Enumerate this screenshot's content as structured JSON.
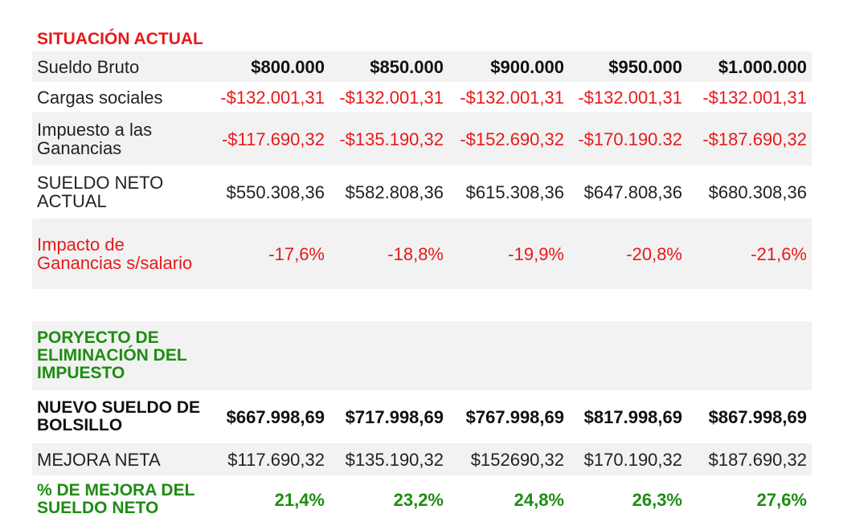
{
  "current": {
    "heading": "SITUACIÓN ACTUAL",
    "rows": {
      "gross": {
        "label": "Sueldo Bruto",
        "values": [
          "$800.000",
          "$850.000",
          "$900.000",
          "$950.000",
          "$1.000.000"
        ]
      },
      "social": {
        "label": "Cargas sociales",
        "values": [
          "-$132.001,31",
          "-$132.001,31",
          "-$132.001,31",
          "-$132.001,31",
          "-$132.001,31"
        ]
      },
      "tax": {
        "label": "Impuesto a las Ganancias",
        "values": [
          "-$117.690,32",
          "-$135.190,32",
          "-$152.690,32",
          "-$170.190.32",
          "-$187.690,32"
        ]
      },
      "net": {
        "label": "SUELDO NETO ACTUAL",
        "values": [
          "$550.308,36",
          "$582.808,36",
          "$615.308,36",
          "$647.808,36",
          "$680.308,36"
        ]
      },
      "impact": {
        "label": "Impacto de Ganancias s/salario",
        "values": [
          "-17,6%",
          "-18,8%",
          "-19,9%",
          "-20,8%",
          "-21,6%"
        ]
      }
    }
  },
  "project": {
    "heading": "PORYECTO DE ELIMINACIÓN DEL IMPUESTO",
    "rows": {
      "new_net": {
        "label": "NUEVO SUELDO DE BOLSILLO",
        "values": [
          "$667.998,69",
          "$717.998,69",
          "$767.998,69",
          "$817.998,69",
          "$867.998,69"
        ]
      },
      "improvement": {
        "label": "MEJORA NETA",
        "values": [
          "$117.690,32",
          "$135.190,32",
          "$152690,32",
          "$170.190,32",
          "$187.690,32"
        ]
      },
      "pct": {
        "label": "% DE MEJORA DEL SUELDO NETO",
        "values": [
          "21,4%",
          "23,2%",
          "24,8%",
          "26,3%",
          "27,6%"
        ]
      }
    }
  },
  "colors": {
    "negative": "#e8191a",
    "positive": "#1e8c12",
    "shade": "#f2f2f2"
  }
}
